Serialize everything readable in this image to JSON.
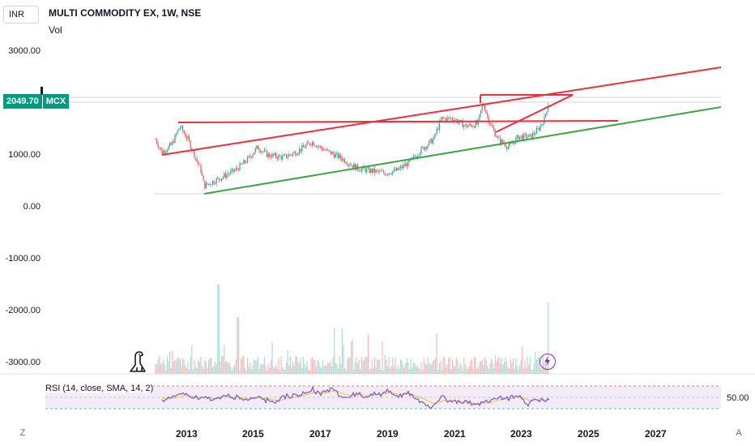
{
  "header": {
    "currency": "INR",
    "title": "MULTI COMMODITY EX, 1W, NSE",
    "subtitle": "Vol"
  },
  "price_axis": {
    "labels": [
      "3000.00",
      "1000.00",
      "0.00",
      "-1000.00",
      "-2000.00",
      "-3000.00"
    ]
  },
  "price_tag": {
    "price": "2049.70",
    "symbol": "MCX"
  },
  "rsi": {
    "label": "RSI (14, close, SMA, 14, 2)",
    "level": "50.00"
  },
  "time_axis": {
    "labels": [
      "2013",
      "2015",
      "2017",
      "2019",
      "2021",
      "2023",
      "2025",
      "2027"
    ]
  },
  "corner_buttons": {
    "left": "Z",
    "right": "A"
  },
  "colors": {
    "up": "#26a69a",
    "down": "#ef5350",
    "trend_red": "#e8303e",
    "trend_green": "#43a047",
    "rsi_line": "#7e57c2",
    "rsi_sma": "#f5c242",
    "rsi_band": "#ede7f6"
  },
  "icons": {
    "logo": "tradingview-dino-icon",
    "alert": "flash-icon"
  }
}
